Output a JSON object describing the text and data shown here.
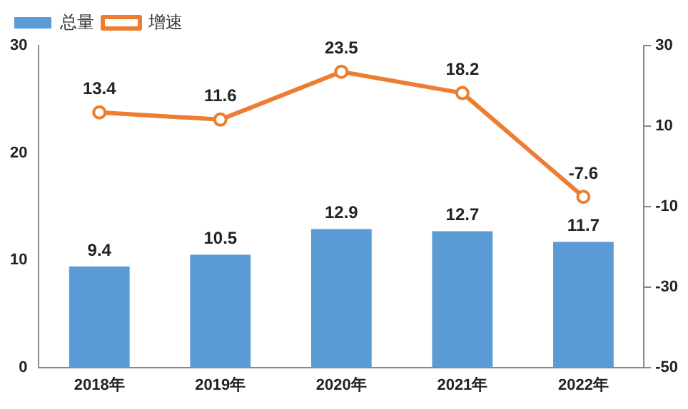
{
  "chart_data": {
    "type": "bar",
    "categories": [
      "2018年",
      "2019年",
      "2020年",
      "2021年",
      "2022年"
    ],
    "series": [
      {
        "name": "总量",
        "color": "#5b9bd5",
        "values": [
          9.4,
          10.5,
          12.9,
          12.7,
          11.7
        ]
      },
      {
        "name": "增速",
        "type": "line",
        "axis": "y2",
        "color": "#ed7d31",
        "values": [
          13.4,
          11.6,
          23.5,
          18.2,
          -7.6
        ]
      }
    ],
    "ylim": [
      0,
      30
    ],
    "yticks": [
      0,
      10,
      20,
      30
    ],
    "y2lim": [
      -50,
      30
    ],
    "y2ticks": [
      -50,
      -30,
      -10,
      10,
      30
    ],
    "data_labels": true,
    "grid": false,
    "legend": "top left",
    "marker": "circle"
  }
}
